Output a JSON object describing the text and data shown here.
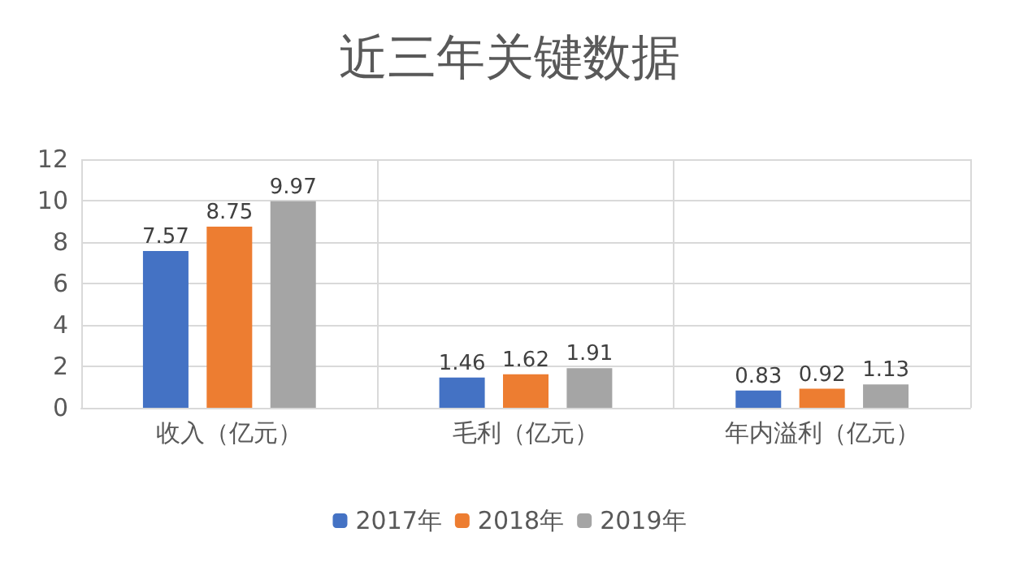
{
  "chart_data": {
    "type": "bar",
    "title": "近三年关键数据",
    "categories": [
      "收入（亿元）",
      "毛利（亿元）",
      "年内溢利（亿元）"
    ],
    "series": [
      {
        "name": "2017年",
        "color": "#4472c4",
        "values": [
          7.57,
          1.46,
          0.83
        ]
      },
      {
        "name": "2018年",
        "color": "#ed7d31",
        "values": [
          8.75,
          1.62,
          0.92
        ]
      },
      {
        "name": "2019年",
        "color": "#a5a5a5",
        "values": [
          9.97,
          1.91,
          1.13
        ]
      }
    ],
    "ylim": [
      0,
      12
    ],
    "yticks": [
      0,
      2,
      4,
      6,
      8,
      10,
      12
    ],
    "grid": true,
    "legend": "bottom",
    "data_labels": true
  }
}
